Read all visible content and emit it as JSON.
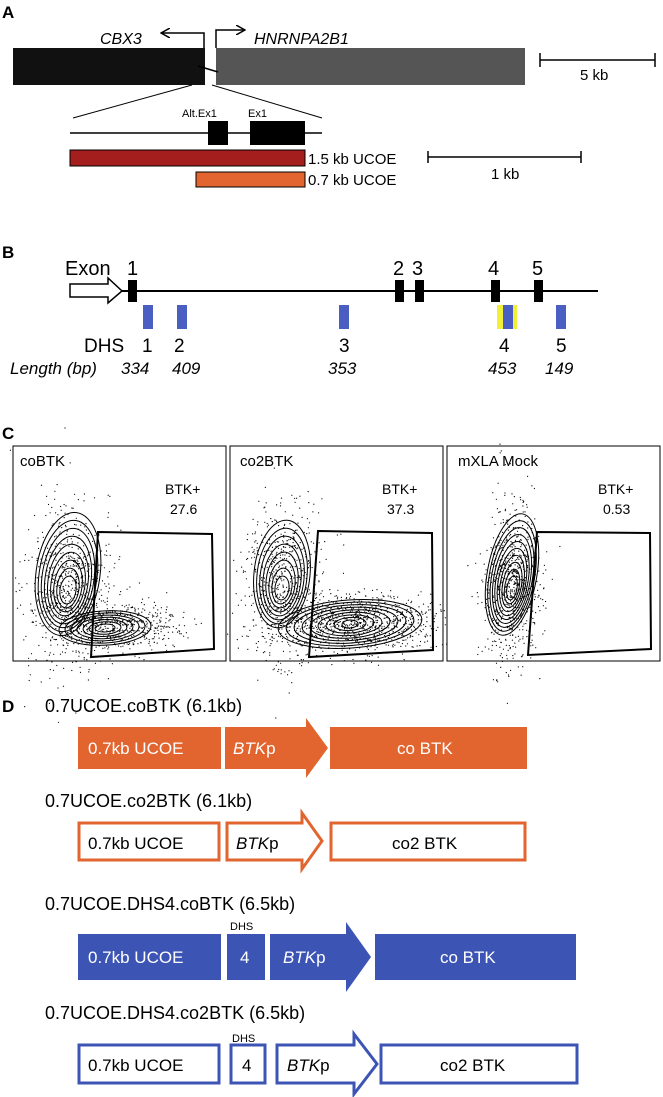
{
  "colors": {
    "dark_gene": "#111111",
    "gray_gene": "#555555",
    "ucoe15": "#a51e1e",
    "ucoe07": "#e2652f",
    "orange": "#e2652f",
    "blue": "#3c55b4",
    "dhs_box": "#4a5fc1",
    "dhs4_highlight": "#f1ef3a"
  },
  "panelA": {
    "letter": "A",
    "gene_left": "CBX3",
    "gene_right": "HNRNPA2B1",
    "scale_big": "5 kb",
    "alt_ex1": "Alt.Ex1",
    "ex1": "Ex1",
    "ucoe15_label": "1.5 kb UCOE",
    "ucoe07_label": "0.7 kb UCOE",
    "scale_small": "1 kb"
  },
  "panelB": {
    "letter": "B",
    "exon_label": "Exon",
    "exons": [
      "1",
      "2",
      "3",
      "4",
      "5"
    ],
    "dhs_label": "DHS",
    "dhs_numbers": [
      "1",
      "2",
      "3",
      "4",
      "5"
    ],
    "length_label": "Length (bp)",
    "lengths": [
      "334",
      "409",
      "353",
      "453",
      "149"
    ]
  },
  "panelC": {
    "letter": "C",
    "plots": [
      {
        "title": "coBTK",
        "gate_label": "BTK+",
        "gate_value": "27.6"
      },
      {
        "title": "co2BTK",
        "gate_label": "BTK+",
        "gate_value": "37.3"
      },
      {
        "title": "mXLA Mock",
        "gate_label": "BTK+",
        "gate_value": "0.53"
      }
    ]
  },
  "panelD": {
    "letter": "D",
    "constructs": [
      {
        "title": "0.7UCOE.coBTK (6.1kb)",
        "ucoe": "0.7kb UCOE",
        "promoter_ital": "BTK",
        "promoter_rest": "p",
        "gene": "co BTK",
        "style": "filled-orange"
      },
      {
        "title": "0.7UCOE.co2BTK (6.1kb)",
        "ucoe": "0.7kb UCOE",
        "promoter_ital": "BTK",
        "promoter_rest": "p",
        "gene": "co2 BTK",
        "style": "outline-orange"
      },
      {
        "title": "0.7UCOE.DHS4.coBTK (6.5kb)",
        "ucoe": "0.7kb UCOE",
        "dhs_label": "DHS",
        "dhs_num": "4",
        "promoter_ital": "BTK",
        "promoter_rest": "p",
        "gene": "co BTK",
        "style": "filled-blue"
      },
      {
        "title": "0.7UCOE.DHS4.co2BTK (6.5kb)",
        "ucoe": "0.7kb UCOE",
        "dhs_label": "DHS",
        "dhs_num": "4",
        "promoter_ital": "BTK",
        "promoter_rest": "p",
        "gene": "co2 BTK",
        "style": "outline-blue"
      }
    ]
  }
}
